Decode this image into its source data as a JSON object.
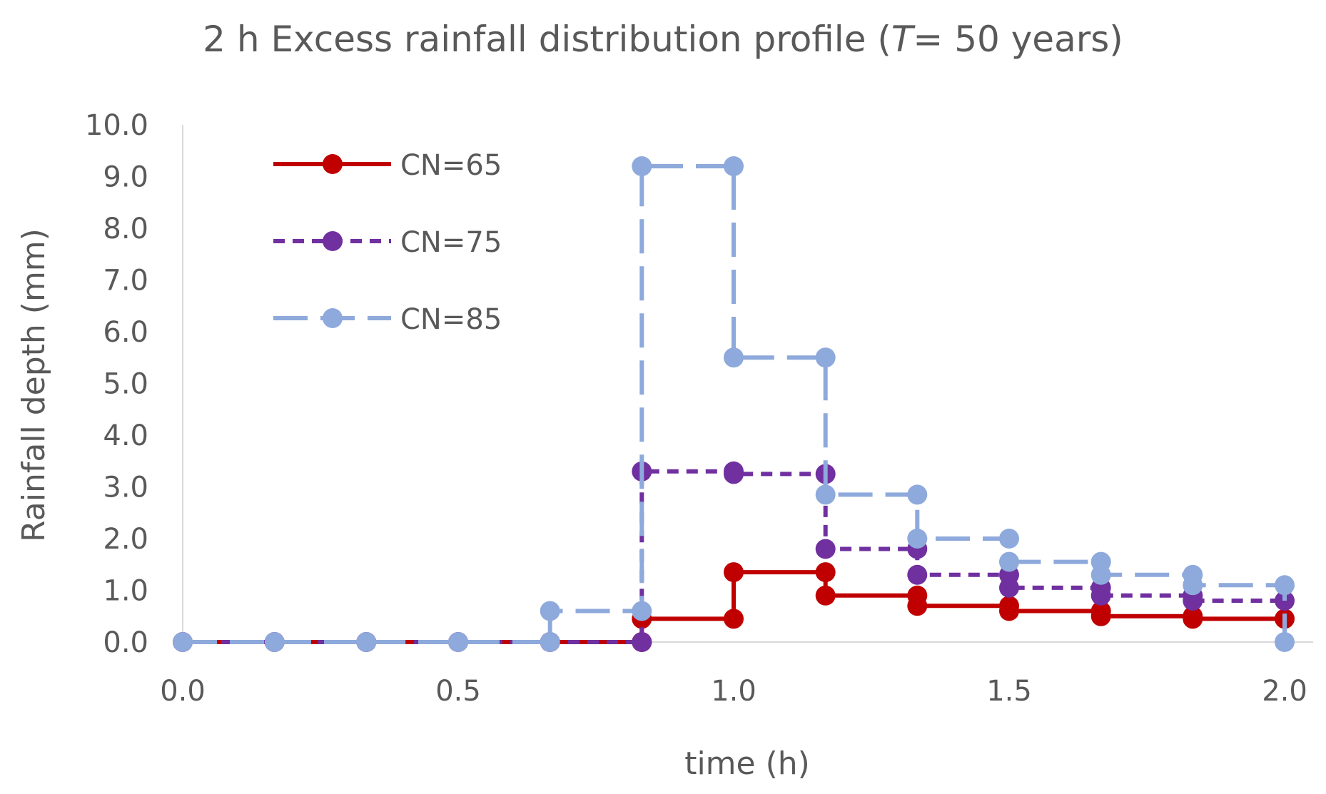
{
  "chart_data": {
    "type": "line",
    "line_shape": "step",
    "title_parts": [
      {
        "text": "2 h Excess rainfall distribution profile (",
        "italic": false
      },
      {
        "text": "T",
        "italic": true
      },
      {
        "text": "= 50 years)",
        "italic": false
      }
    ],
    "xlabel": "time (h)",
    "ylabel": "Rainfall depth (mm)",
    "xlim": [
      0,
      2
    ],
    "ylim": [
      0,
      10
    ],
    "xticks": [
      0,
      0.5,
      1,
      1.5,
      2
    ],
    "xtick_labels": [
      "0.0",
      "0.5",
      "1.0",
      "1.5",
      "2.0"
    ],
    "yticks": [
      0,
      1,
      2,
      3,
      4,
      5,
      6,
      7,
      8,
      9,
      10
    ],
    "ytick_labels": [
      "0.0",
      "1.0",
      "2.0",
      "3.0",
      "4.0",
      "5.0",
      "6.0",
      "7.0",
      "8.0",
      "9.0",
      "10.0"
    ],
    "grid": false,
    "legend_position": "top-left",
    "series": [
      {
        "name": "CN=65",
        "color": "#C00000",
        "dash": "solid",
        "points": [
          [
            0.0,
            0.0
          ],
          [
            0.1667,
            0.0
          ],
          [
            0.3333,
            0.0
          ],
          [
            0.5,
            0.0
          ],
          [
            0.6667,
            0.0
          ],
          [
            0.8333,
            0.0
          ],
          [
            0.8333,
            0.45
          ],
          [
            1.0,
            0.45
          ],
          [
            1.0,
            1.35
          ],
          [
            1.1667,
            1.35
          ],
          [
            1.1667,
            0.9
          ],
          [
            1.3333,
            0.9
          ],
          [
            1.3333,
            0.7
          ],
          [
            1.5,
            0.7
          ],
          [
            1.5,
            0.6
          ],
          [
            1.6667,
            0.6
          ],
          [
            1.6667,
            0.5
          ],
          [
            1.8333,
            0.5
          ],
          [
            1.8333,
            0.45
          ],
          [
            2.0,
            0.45
          ]
        ]
      },
      {
        "name": "CN=75",
        "color": "#7030A0",
        "dash": "short",
        "points": [
          [
            0.0,
            0.0
          ],
          [
            0.1667,
            0.0
          ],
          [
            0.3333,
            0.0
          ],
          [
            0.5,
            0.0
          ],
          [
            0.6667,
            0.0
          ],
          [
            0.8333,
            0.0
          ],
          [
            0.8333,
            3.3
          ],
          [
            1.0,
            3.3
          ],
          [
            1.0,
            3.25
          ],
          [
            1.1667,
            3.25
          ],
          [
            1.1667,
            1.8
          ],
          [
            1.3333,
            1.8
          ],
          [
            1.3333,
            1.3
          ],
          [
            1.5,
            1.3
          ],
          [
            1.5,
            1.05
          ],
          [
            1.6667,
            1.05
          ],
          [
            1.6667,
            0.9
          ],
          [
            1.8333,
            0.9
          ],
          [
            1.8333,
            0.8
          ],
          [
            2.0,
            0.8
          ]
        ]
      },
      {
        "name": "CN=85",
        "color": "#8EA9DB",
        "dash": "long",
        "points": [
          [
            0.0,
            0.0
          ],
          [
            0.1667,
            0.0
          ],
          [
            0.3333,
            0.0
          ],
          [
            0.5,
            0.0
          ],
          [
            0.6667,
            0.0
          ],
          [
            0.6667,
            0.6
          ],
          [
            0.8333,
            0.6
          ],
          [
            0.8333,
            9.2
          ],
          [
            1.0,
            9.2
          ],
          [
            1.0,
            5.5
          ],
          [
            1.1667,
            5.5
          ],
          [
            1.1667,
            2.85
          ],
          [
            1.3333,
            2.85
          ],
          [
            1.3333,
            2.0
          ],
          [
            1.5,
            2.0
          ],
          [
            1.5,
            1.55
          ],
          [
            1.6667,
            1.55
          ],
          [
            1.6667,
            1.3
          ],
          [
            1.8333,
            1.3
          ],
          [
            1.8333,
            1.1
          ],
          [
            2.0,
            1.1
          ],
          [
            2.0,
            0.0
          ]
        ]
      }
    ]
  }
}
